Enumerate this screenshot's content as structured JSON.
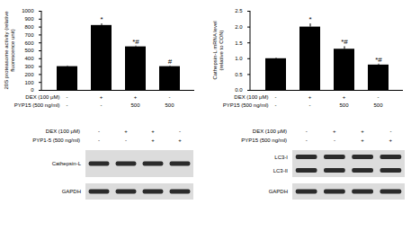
{
  "chart_data": [
    {
      "type": "bar",
      "ylabel": "20S proteasome activity (relative fluorescence unit)",
      "categories": [
        null,
        null,
        null,
        null
      ],
      "values": [
        300,
        820,
        550,
        300
      ],
      "errors": [
        8,
        20,
        10,
        8
      ],
      "annotations": [
        null,
        "*",
        "*#",
        "#"
      ],
      "color": "#000000",
      "ylim": [
        0,
        1000
      ],
      "yticks": [
        0,
        100,
        200,
        300,
        400,
        500,
        600,
        700,
        800,
        900,
        1000
      ],
      "treatments": [
        {
          "label": "DEX (100 μM)",
          "values": [
            "-",
            "+",
            "+",
            "-"
          ]
        },
        {
          "label": "PYP15 (500 ng/ml)",
          "values": [
            "-",
            "-",
            "500",
            "500"
          ]
        }
      ]
    },
    {
      "type": "bar",
      "ylabel": "Cathepsin-L mRNA level (relative to CON)",
      "categories": [
        null,
        null,
        null,
        null
      ],
      "values": [
        1.0,
        2.0,
        1.3,
        0.8
      ],
      "errors": [
        0.02,
        0.1,
        0.08,
        0.03
      ],
      "annotations": [
        null,
        "*",
        "*#",
        "*#"
      ],
      "color": "#000000",
      "ylim": [
        0,
        2.5
      ],
      "yticks": [
        {
          "value": 0,
          "label": "0.0"
        },
        0.5,
        {
          "value": 1,
          "label": "1.0"
        },
        1.5,
        {
          "value": 2,
          "label": "2.0"
        },
        2.5
      ],
      "treatments": [
        {
          "label": "DEX (100 μM)",
          "values": [
            "-",
            "+",
            "+",
            "-"
          ]
        },
        {
          "label": "PYP15 (500 ng/ml)",
          "values": [
            "-",
            "-",
            "500",
            "500"
          ]
        }
      ]
    }
  ],
  "blots": [
    {
      "treatments": [
        {
          "label": "DEX (100 μM)",
          "values": [
            "-",
            "+",
            "+",
            "-"
          ]
        },
        {
          "label": "PYP1-5 (500 ng/ml)",
          "values": [
            "-",
            "-",
            "+",
            "+"
          ]
        }
      ],
      "bands": [
        [
          "Cathepsin-L"
        ],
        [
          "GAPDH"
        ]
      ]
    },
    {
      "treatments": [
        {
          "label": "DEX (100 μM)",
          "values": [
            "-",
            "+",
            "+",
            "-"
          ]
        },
        {
          "label": "PYP15 (500 ng/ml)",
          "values": [
            "-",
            "-",
            "+",
            "+"
          ]
        }
      ],
      "bands": [
        [
          "LC3-I",
          "LC3-II"
        ],
        [
          "GAPDH"
        ]
      ]
    }
  ]
}
